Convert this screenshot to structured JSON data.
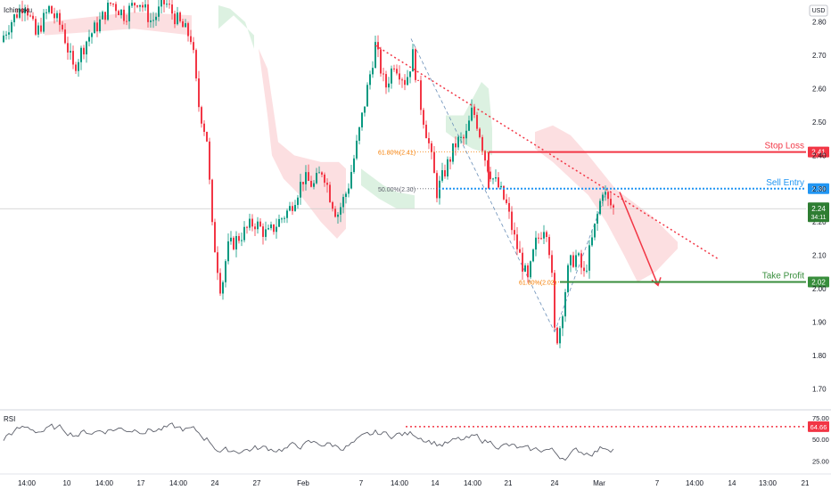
{
  "chart_data": {
    "type": "candlestick",
    "indicator_label": "Ichimoku",
    "currency": "USD",
    "price_axis": {
      "range": [
        1.65,
        2.85
      ],
      "ticks": [
        "2.80",
        "2.70",
        "2.60",
        "2.50",
        "2.40",
        "2.30",
        "2.20",
        "2.10",
        "2.00",
        "1.90",
        "1.80",
        "1.70"
      ]
    },
    "time_axis_labels": [
      "14:00",
      "10",
      "14:00",
      "17",
      "14:00",
      "24",
      "27",
      "Feb",
      "7",
      "14:00",
      "14",
      "14:00",
      "21",
      "24",
      "Mar",
      "7",
      "14:00",
      "14",
      "13:00",
      "21"
    ],
    "current_price": {
      "value": "2.24",
      "countdown": "34:11"
    },
    "levels": [
      {
        "name": "Stop Loss",
        "value": 2.41,
        "label": "2.41",
        "color": "#f23645"
      },
      {
        "name": "Sell Entry",
        "value": 2.3,
        "label": "2.30",
        "color": "#2196f3"
      },
      {
        "name": "Take Profit",
        "value": 2.02,
        "label": "2.02",
        "color": "#388e3c"
      }
    ],
    "fib_labels": [
      {
        "text": "61.80%(2.41)",
        "value": 2.41,
        "color": "#f57c00"
      },
      {
        "text": "50.00%(2.30)",
        "value": 2.3,
        "color": "#5d606b"
      },
      {
        "text": "61.80%(2.02)",
        "value": 2.02,
        "color": "#f57c00"
      }
    ],
    "rsi": {
      "label": "RSI",
      "range": [
        12,
        82
      ],
      "ticks": [
        "75.00",
        "50.00",
        "25.00"
      ],
      "current": "64.66",
      "resistance": 64.66
    },
    "colors": {
      "up": "#089981",
      "down": "#f23645",
      "cloud_bear": "#fcd9dc",
      "cloud_bull": "#d6eedc",
      "trendline": "#f23645",
      "rsi_line": "#5d606b"
    }
  }
}
